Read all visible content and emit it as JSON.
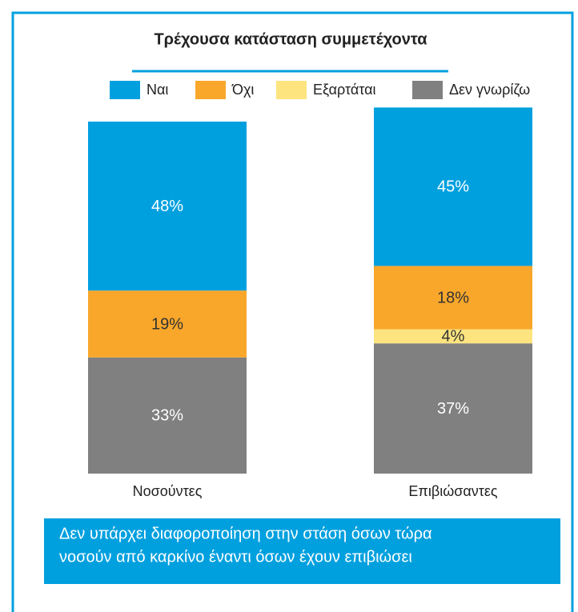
{
  "chart_data": {
    "type": "stacked_bar",
    "title": "Τρέχουσα κατάσταση συμμετέχοντα",
    "categories": [
      "Νοσούντες",
      "Επιβιώσαντες"
    ],
    "series": [
      {
        "name": "Ναι",
        "color": "#00a0df",
        "label_color": "#ffffff",
        "values": [
          48,
          45
        ],
        "value_labels": [
          "48%",
          "45%"
        ]
      },
      {
        "name": "Όχι",
        "color": "#f9a72b",
        "label_color": "#333333",
        "values": [
          19,
          18
        ],
        "value_labels": [
          "19%",
          "18%"
        ]
      },
      {
        "name": "Εξαρτάται",
        "color": "#fde47f",
        "label_color": "#333333",
        "values": [
          0,
          4
        ],
        "value_labels": [
          null,
          "4%"
        ]
      },
      {
        "name": "Δεν γνωρίζω",
        "color": "#808080",
        "label_color": "#ffffff",
        "values": [
          33,
          37
        ],
        "value_labels": [
          "33%",
          "37%"
        ]
      }
    ],
    "note": [
      "Δεν υπάρχει διαφοροποίηση στην στάση όσων τώρα",
      "νοσούν από καρκίνο έναντι όσων έχουν επιβιώσει"
    ]
  }
}
